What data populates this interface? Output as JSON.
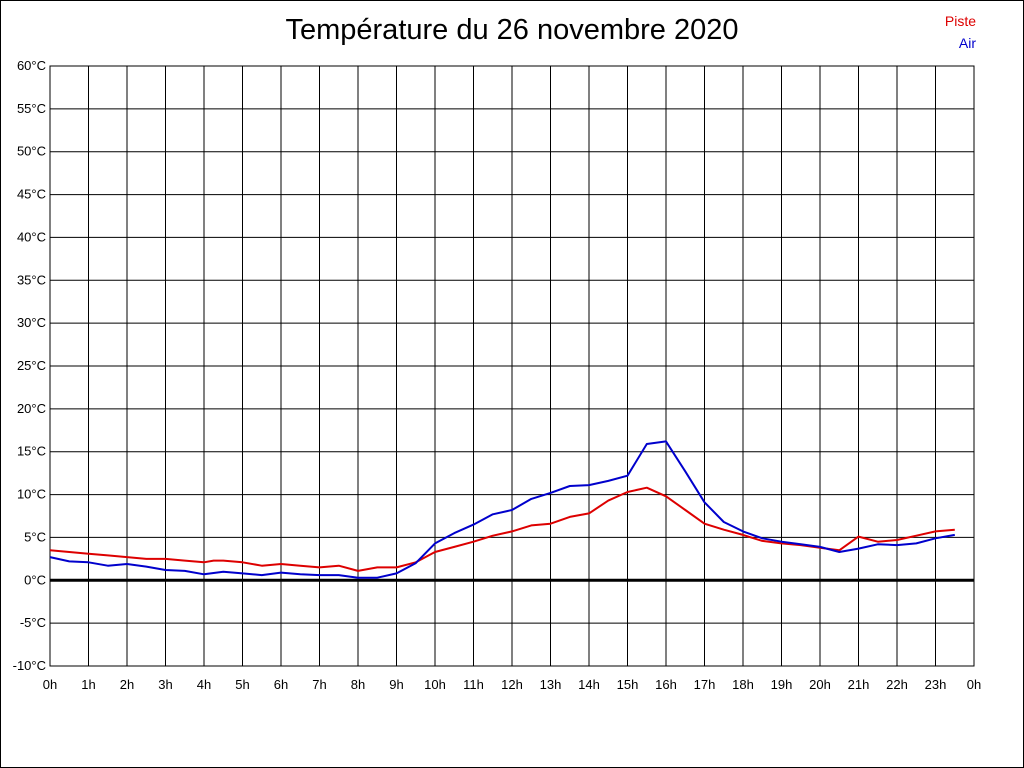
{
  "chart_data": {
    "type": "line",
    "title": "Température du 26 novembre 2020",
    "xlabel": "",
    "ylabel": "",
    "y_unit": "°C",
    "ylim": [
      -10,
      60
    ],
    "y_ticks": [
      "60°C",
      "55°C",
      "50°C",
      "45°C",
      "40°C",
      "35°C",
      "30°C",
      "25°C",
      "20°C",
      "15°C",
      "10°C",
      "5°C",
      "0°C",
      "-5°C",
      "-10°C"
    ],
    "x_ticks": [
      "0h",
      "1h",
      "2h",
      "3h",
      "4h",
      "5h",
      "6h",
      "7h",
      "8h",
      "9h",
      "10h",
      "11h",
      "12h",
      "13h",
      "14h",
      "15h",
      "16h",
      "17h",
      "18h",
      "19h",
      "20h",
      "21h",
      "22h",
      "23h",
      "0h"
    ],
    "grid": true,
    "legend_position": "top-right",
    "series": [
      {
        "name": "Piste",
        "color": "#dd0000",
        "x": [
          0,
          0.5,
          1,
          1.5,
          2,
          2.5,
          3,
          3.5,
          4,
          4.25,
          4.5,
          5,
          5.5,
          6,
          6.5,
          7,
          7.5,
          8,
          8.5,
          9,
          9.5,
          10,
          10.5,
          11,
          11.5,
          12,
          12.5,
          13,
          13.5,
          14,
          14.5,
          15,
          15.5,
          16,
          16.5,
          17,
          17.5,
          18,
          18.5,
          19,
          19.5,
          20,
          20.5,
          21,
          21.5,
          22,
          22.5,
          23,
          23.5
        ],
        "values": [
          3.5,
          3.3,
          3.1,
          2.9,
          2.7,
          2.5,
          2.5,
          2.3,
          2.1,
          2.3,
          2.3,
          2.1,
          1.7,
          1.9,
          1.7,
          1.5,
          1.7,
          1.1,
          1.5,
          1.5,
          2.1,
          3.3,
          3.9,
          4.5,
          5.2,
          5.7,
          6.4,
          6.6,
          7.4,
          7.8,
          9.3,
          10.3,
          10.8,
          9.8,
          8.2,
          6.6,
          5.9,
          5.3,
          4.6,
          4.3,
          4.1,
          3.8,
          3.5,
          5.1,
          4.5,
          4.7,
          5.2,
          5.7,
          5.9
        ]
      },
      {
        "name": "Air",
        "color": "#0000cc",
        "x": [
          0,
          0.5,
          1,
          1.5,
          2,
          2.5,
          3,
          3.5,
          4,
          4.5,
          5,
          5.5,
          6,
          6.5,
          7,
          7.5,
          8,
          8.5,
          9,
          9.5,
          10,
          10.5,
          11,
          11.5,
          12,
          12.5,
          13,
          13.5,
          14,
          14.5,
          15,
          15.5,
          16,
          16.5,
          17,
          17.5,
          18,
          18.5,
          19,
          19.5,
          20,
          20.5,
          21,
          21.5,
          22,
          22.5,
          23,
          23.5
        ],
        "values": [
          2.7,
          2.2,
          2.1,
          1.7,
          1.9,
          1.6,
          1.2,
          1.1,
          0.7,
          1.0,
          0.8,
          0.6,
          0.9,
          0.7,
          0.6,
          0.6,
          0.3,
          0.3,
          0.8,
          2.0,
          4.3,
          5.5,
          6.5,
          7.7,
          8.2,
          9.5,
          10.2,
          11.0,
          11.1,
          11.6,
          12.2,
          15.9,
          16.2,
          12.7,
          9.1,
          6.8,
          5.7,
          4.9,
          4.5,
          4.2,
          3.9,
          3.3,
          3.7,
          4.2,
          4.1,
          4.3,
          4.9,
          5.3
        ]
      }
    ]
  }
}
